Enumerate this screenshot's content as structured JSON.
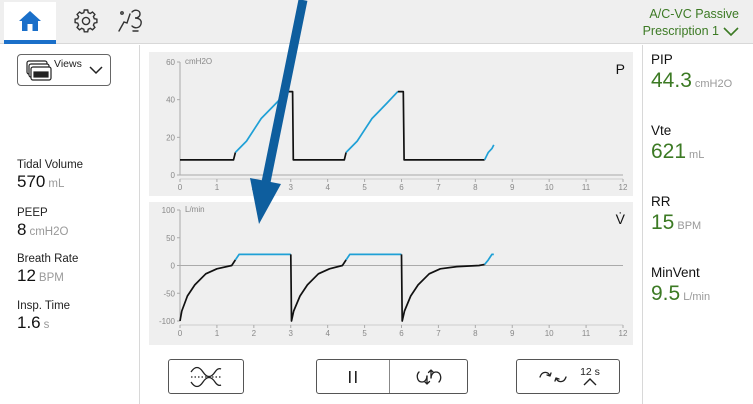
{
  "header": {
    "tabs": [
      {
        "name": "home-icon",
        "active": true
      },
      {
        "name": "gear-icon",
        "active": false
      },
      {
        "name": "tools-icon",
        "active": false
      }
    ],
    "mode_label": "A/C-VC  Passive",
    "prescription_label": "Prescription 1"
  },
  "sidebar": {
    "views_label": "Views",
    "params": [
      {
        "name": "Tidal Volume",
        "value": "570",
        "unit": "mL"
      },
      {
        "name": "PEEP",
        "value": "8",
        "unit": "cmH2O"
      },
      {
        "name": "Breath Rate",
        "value": "12",
        "unit": "BPM"
      },
      {
        "name": "Insp. Time",
        "value": "1.6",
        "unit": "s"
      }
    ]
  },
  "measurements": [
    {
      "name": "PIP",
      "value": "44.3",
      "unit": "cmH2O"
    },
    {
      "name": "Vte",
      "value": "621",
      "unit": "mL"
    },
    {
      "name": "RR",
      "value": "15",
      "unit": "BPM"
    },
    {
      "name": "MinVent",
      "value": "9.5",
      "unit": "L/min"
    }
  ],
  "colors": {
    "accent": "#1a6fc9",
    "value_green": "#3c7a24",
    "trace_blue": "#1fa0d6",
    "trace_black": "#111111"
  },
  "controls": {
    "buttons": [
      "waveform-toggle-icon",
      "pause-icon",
      "inspiratory-expiratory-hold-icon",
      "sweep-speed-icon"
    ],
    "sweep_label": "12 s"
  },
  "chart_data": [
    {
      "type": "line",
      "letter": "P",
      "ylabel": "cmH2O",
      "ylim": [
        0,
        60
      ],
      "yticks": [
        0,
        20,
        40,
        60
      ],
      "xlim": [
        0,
        12
      ],
      "xticks": [
        0,
        1,
        2,
        3,
        4,
        5,
        6,
        7,
        8,
        9,
        10,
        11,
        12
      ],
      "series": [
        {
          "color": "#111111",
          "points": [
            [
              0,
              8
            ],
            [
              1.45,
              8
            ],
            [
              1.5,
              12
            ]
          ]
        },
        {
          "color": "#1fa0d6",
          "points": [
            [
              1.5,
              12
            ],
            [
              1.8,
              18
            ],
            [
              2.2,
              30
            ],
            [
              2.6,
              38
            ],
            [
              2.9,
              44.3
            ]
          ]
        },
        {
          "color": "#111111",
          "points": [
            [
              2.9,
              44.3
            ],
            [
              3.05,
              44.3
            ],
            [
              3.07,
              8
            ],
            [
              4.45,
              8
            ],
            [
              4.5,
              12
            ]
          ]
        },
        {
          "color": "#1fa0d6",
          "points": [
            [
              4.5,
              12
            ],
            [
              4.8,
              18
            ],
            [
              5.2,
              30
            ],
            [
              5.6,
              38
            ],
            [
              5.9,
              44.3
            ]
          ]
        },
        {
          "color": "#111111",
          "points": [
            [
              5.9,
              44.3
            ],
            [
              6.05,
              44.3
            ],
            [
              6.07,
              8
            ],
            [
              8.25,
              8
            ]
          ]
        },
        {
          "color": "#1fa0d6",
          "points": [
            [
              8.25,
              8
            ],
            [
              8.35,
              12
            ],
            [
              8.45,
              14
            ],
            [
              8.5,
              16
            ]
          ]
        }
      ]
    },
    {
      "type": "line",
      "letter": "V̇",
      "ylabel": "L/min",
      "ylim": [
        -100,
        100
      ],
      "yticks": [
        -100,
        -50,
        0,
        50,
        100
      ],
      "xlim": [
        0,
        12
      ],
      "xticks": [
        0,
        1,
        2,
        3,
        4,
        5,
        6,
        7,
        8,
        9,
        10,
        11,
        12
      ],
      "series": [
        {
          "color": "#111111",
          "points": [
            [
              0,
              -100
            ],
            [
              0.05,
              -82
            ],
            [
              0.2,
              -55
            ],
            [
              0.4,
              -35
            ],
            [
              0.7,
              -15
            ],
            [
              1.0,
              -6
            ],
            [
              1.4,
              0
            ],
            [
              1.5,
              10
            ]
          ]
        },
        {
          "color": "#1fa0d6",
          "points": [
            [
              1.5,
              10
            ],
            [
              1.6,
              20
            ],
            [
              3.0,
              20
            ]
          ]
        },
        {
          "color": "#111111",
          "points": [
            [
              3.0,
              20
            ],
            [
              3.02,
              -100
            ],
            [
              3.08,
              -82
            ],
            [
              3.25,
              -55
            ],
            [
              3.45,
              -35
            ],
            [
              3.75,
              -15
            ],
            [
              4.05,
              -6
            ],
            [
              4.4,
              0
            ],
            [
              4.5,
              10
            ]
          ]
        },
        {
          "color": "#1fa0d6",
          "points": [
            [
              4.5,
              10
            ],
            [
              4.6,
              20
            ],
            [
              6.0,
              20
            ]
          ]
        },
        {
          "color": "#111111",
          "points": [
            [
              6.0,
              20
            ],
            [
              6.02,
              -100
            ],
            [
              6.08,
              -82
            ],
            [
              6.25,
              -55
            ],
            [
              6.45,
              -35
            ],
            [
              6.75,
              -15
            ],
            [
              7.05,
              -6
            ],
            [
              7.5,
              -2
            ],
            [
              8.1,
              0
            ],
            [
              8.25,
              2
            ]
          ]
        },
        {
          "color": "#1fa0d6",
          "points": [
            [
              8.25,
              2
            ],
            [
              8.35,
              10
            ],
            [
              8.45,
              20
            ],
            [
              8.5,
              20
            ]
          ]
        }
      ]
    }
  ]
}
